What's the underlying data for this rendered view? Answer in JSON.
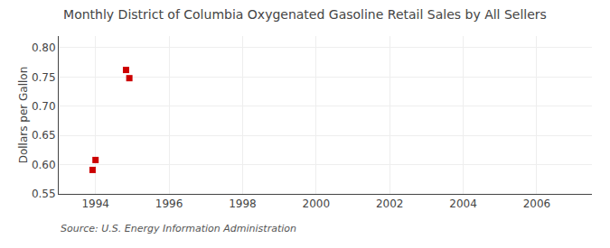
{
  "chart_data": {
    "type": "scatter",
    "title": "Monthly District of Columbia Oxygenated Gasoline Retail Sales by All Sellers",
    "ylabel": "Dollars per Gallon",
    "annotations": [
      "Source: U.S. Energy Information Administration"
    ],
    "x": [
      1993.92,
      1994.0,
      1994.83,
      1994.92
    ],
    "values": [
      0.591,
      0.608,
      0.762,
      0.748
    ],
    "color": "#cc0000",
    "marker": "square",
    "xlim": [
      1993.0,
      2007.5
    ],
    "ylim": [
      0.55,
      0.82
    ],
    "xticks": [
      1994,
      1996,
      1998,
      2000,
      2002,
      2004,
      2006
    ],
    "yticks": [
      0.55,
      {
        "value": 0.6,
        "label": "0.60"
      },
      0.65,
      {
        "value": 0.7,
        "label": "0.70"
      },
      0.75,
      {
        "value": 0.8,
        "label": "0.80"
      }
    ],
    "grid": true
  }
}
